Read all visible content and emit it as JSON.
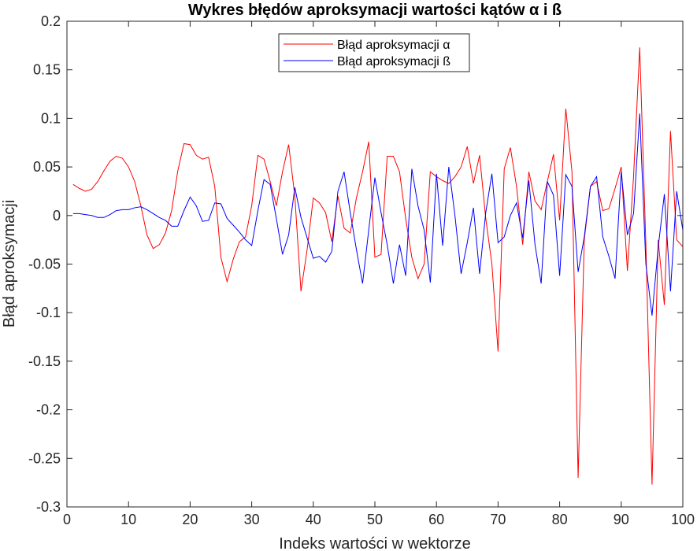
{
  "chart_data": {
    "type": "line",
    "title": "Wykres błędów aproksymacji wartości kątów α i ß",
    "xlabel": "Indeks wartości w wektorze",
    "ylabel": "Błąd aproksymacji",
    "xlim": [
      0,
      100
    ],
    "ylim": [
      -0.3,
      0.2
    ],
    "xticks": [
      0,
      10,
      20,
      30,
      40,
      50,
      60,
      70,
      80,
      90,
      100
    ],
    "yticks": [
      0.2,
      0.15,
      0.1,
      0.05,
      0,
      -0.05,
      -0.1,
      -0.15,
      -0.2,
      -0.25,
      -0.3
    ],
    "xtick_labels": [
      "0",
      "10",
      "20",
      "30",
      "40",
      "50",
      "60",
      "70",
      "80",
      "90",
      "100"
    ],
    "ytick_labels": [
      "0.2",
      "0.15",
      "0.1",
      "0.05",
      "0",
      "-0.05",
      "-0.1",
      "-0.15",
      "-0.2",
      "-0.25",
      "-0.3"
    ],
    "grid": false,
    "legend_position": "top-center",
    "x": [
      1,
      2,
      3,
      4,
      5,
      6,
      7,
      8,
      9,
      10,
      11,
      12,
      13,
      14,
      15,
      16,
      17,
      18,
      19,
      20,
      21,
      22,
      23,
      24,
      25,
      26,
      27,
      28,
      29,
      30,
      31,
      32,
      33,
      34,
      35,
      36,
      37,
      38,
      39,
      40,
      41,
      42,
      43,
      44,
      45,
      46,
      47,
      48,
      49,
      50,
      51,
      52,
      53,
      54,
      55,
      56,
      57,
      58,
      59,
      60,
      61,
      62,
      63,
      64,
      65,
      66,
      67,
      68,
      69,
      70,
      71,
      72,
      73,
      74,
      75,
      76,
      77,
      78,
      79,
      80,
      81,
      82,
      83,
      84,
      85,
      86,
      87,
      88,
      89,
      90,
      91,
      92,
      93,
      94,
      95,
      96,
      97,
      98,
      99,
      100
    ],
    "series": [
      {
        "name": "Błąd aproksymacji α",
        "color": "#ff0000",
        "values": [
          0.032,
          0.028,
          0.025,
          0.027,
          0.035,
          0.046,
          0.056,
          0.061,
          0.059,
          0.05,
          0.035,
          0.01,
          -0.02,
          -0.034,
          -0.03,
          -0.018,
          0.005,
          0.046,
          0.074,
          0.073,
          0.062,
          0.058,
          0.06,
          0.03,
          -0.043,
          -0.068,
          -0.045,
          -0.027,
          -0.022,
          0.01,
          0.062,
          0.058,
          0.035,
          0.01,
          0.045,
          0.073,
          0.02,
          -0.078,
          -0.035,
          0.018,
          0.013,
          0.003,
          -0.027,
          0.02,
          -0.013,
          -0.018,
          0.018,
          0.045,
          0.076,
          -0.043,
          -0.04,
          0.061,
          0.061,
          0.045,
          -0.003,
          -0.043,
          -0.065,
          -0.05,
          0.045,
          0.04,
          0.036,
          0.033,
          0.04,
          0.05,
          0.071,
          0.033,
          0.062,
          -0.003,
          -0.05,
          -0.14,
          0.048,
          0.07,
          0.03,
          -0.03,
          0.045,
          0.015,
          0.006,
          0.035,
          0.063,
          -0.005,
          0.11,
          0.045,
          -0.27,
          -0.025,
          0.03,
          0.035,
          0.005,
          0.007,
          0.028,
          0.05,
          -0.057,
          0.04,
          0.173,
          -0.03,
          -0.277,
          -0.025,
          -0.092,
          0.087,
          -0.025,
          -0.032
        ]
      },
      {
        "name": "Błąd aproksymacji ß",
        "color": "#0000ff",
        "values": [
          0.002,
          0.002,
          0.001,
          0.0,
          -0.002,
          -0.002,
          0.001,
          0.005,
          0.006,
          0.006,
          0.008,
          0.009,
          0.006,
          0.002,
          -0.002,
          -0.005,
          -0.011,
          -0.011,
          0.005,
          0.019,
          0.01,
          -0.006,
          -0.005,
          0.013,
          0.012,
          -0.003,
          -0.01,
          -0.017,
          -0.025,
          -0.031,
          0.005,
          0.037,
          0.032,
          -0.003,
          -0.04,
          -0.02,
          0.029,
          -0.002,
          -0.023,
          -0.044,
          -0.042,
          -0.048,
          -0.037,
          0.025,
          0.045,
          0.003,
          -0.035,
          -0.07,
          -0.015,
          0.039,
          0.003,
          -0.03,
          -0.07,
          -0.03,
          -0.062,
          0.048,
          0.01,
          -0.015,
          -0.069,
          0.043,
          -0.031,
          0.05,
          0.0,
          -0.06,
          -0.028,
          0.008,
          -0.06,
          0.003,
          0.043,
          -0.028,
          -0.022,
          0.0,
          0.013,
          -0.023,
          0.036,
          -0.03,
          -0.07,
          0.035,
          0.021,
          -0.062,
          0.042,
          0.03,
          -0.058,
          -0.022,
          0.03,
          0.04,
          -0.022,
          -0.042,
          -0.065,
          0.045,
          -0.02,
          0.002,
          0.105,
          -0.05,
          -0.103,
          -0.033,
          0.022,
          -0.078,
          0.025,
          -0.015
        ]
      }
    ]
  }
}
